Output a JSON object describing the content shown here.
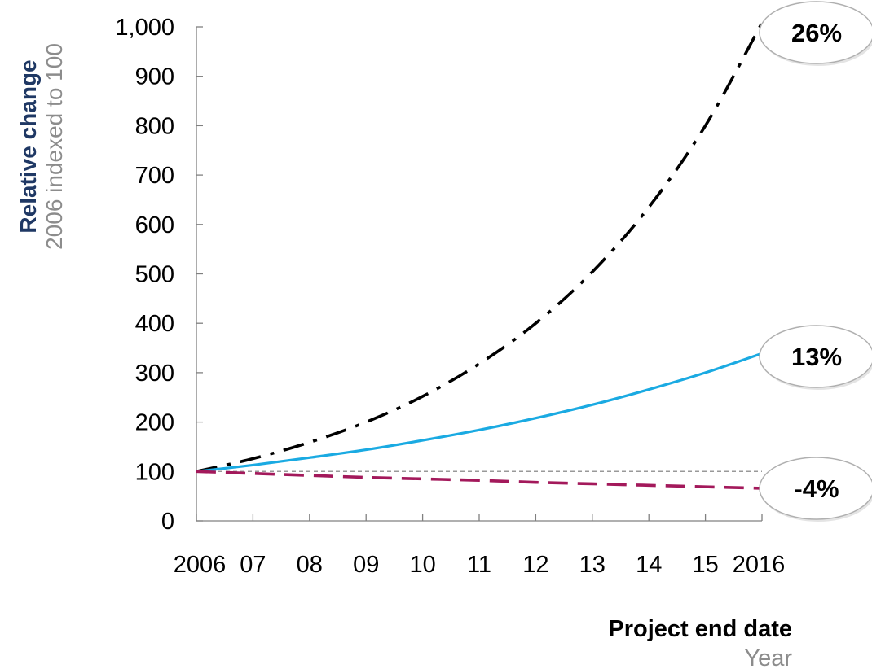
{
  "chart_data": {
    "type": "line",
    "ylabel": "Relative change",
    "ylabel_sub": "2006 indexed to 100",
    "xlabel": "Project end date",
    "xlabel_sub": "Year",
    "x_tick_labels": [
      "2006",
      "07",
      "08",
      "09",
      "10",
      "11",
      "12",
      "13",
      "14",
      "15",
      "2016"
    ],
    "x": [
      2006,
      2007,
      2008,
      2009,
      2010,
      2011,
      2012,
      2013,
      2014,
      2015,
      2016
    ],
    "ylim": [
      0,
      1000
    ],
    "y_ticks": [
      0,
      100,
      200,
      300,
      400,
      500,
      600,
      700,
      800,
      900,
      1000
    ],
    "y_tick_labels": [
      "0",
      "100",
      "200",
      "300",
      "400",
      "500",
      "600",
      "700",
      "800",
      "900",
      "1,000"
    ],
    "grid": false,
    "reference_line": 100,
    "series": [
      {
        "values": [
          100,
          126,
          159,
          200,
          252,
          318,
          400,
          504,
          635,
          800,
          1008
        ],
        "color": "#000000",
        "style": "dash-dot",
        "end_label": "26%"
      },
      {
        "values": [
          100,
          113,
          128,
          144,
          163,
          184,
          208,
          235,
          266,
          300,
          339
        ],
        "color": "#1aaae2",
        "style": "solid",
        "end_label": "13%"
      },
      {
        "values": [
          100,
          96,
          92,
          88,
          85,
          82,
          78,
          75,
          72,
          69,
          66
        ],
        "color": "#a3195b",
        "style": "dashed",
        "end_label": "-4%"
      }
    ]
  }
}
